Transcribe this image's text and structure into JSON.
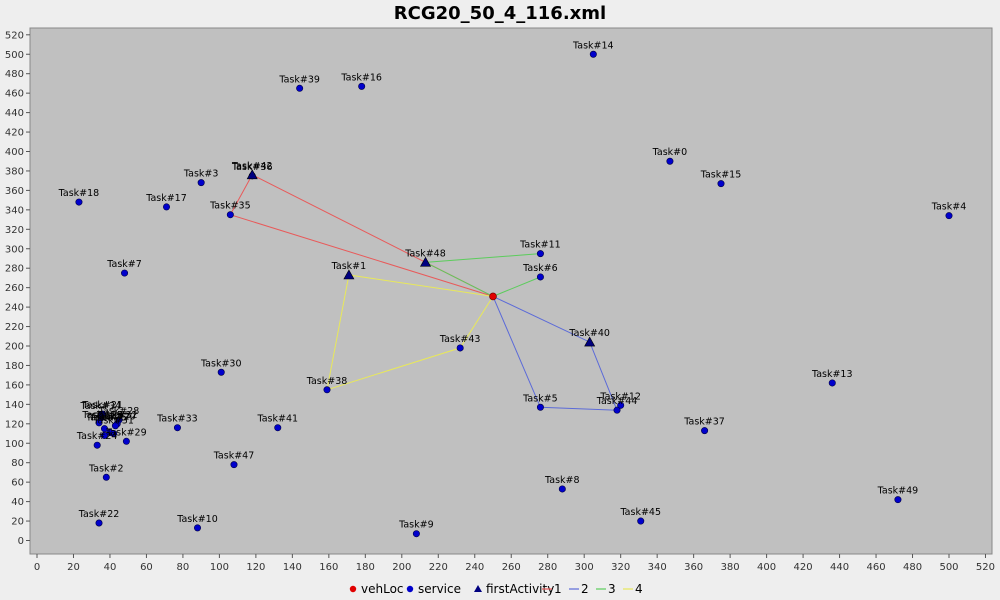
{
  "chart_data": {
    "type": "scatter",
    "title": "RCG20_50_4_116.xml",
    "xlim": [
      0,
      524
    ],
    "ylim": [
      -12,
      524
    ],
    "x_ticks": [
      0,
      20,
      40,
      60,
      80,
      100,
      120,
      140,
      160,
      180,
      200,
      220,
      240,
      260,
      280,
      300,
      320,
      340,
      360,
      380,
      400,
      420,
      440,
      460,
      480,
      500,
      520
    ],
    "y_ticks": [
      0,
      20,
      40,
      60,
      80,
      100,
      120,
      140,
      160,
      180,
      200,
      220,
      240,
      260,
      280,
      300,
      320,
      340,
      360,
      380,
      400,
      420,
      440,
      460,
      480,
      500,
      520
    ],
    "grid": false,
    "legend_placement": "bottom",
    "vehLoc": {
      "x": 250,
      "y": 251
    },
    "tasks": [
      {
        "label": "Task#0",
        "x": 347,
        "y": 390,
        "kind": "service"
      },
      {
        "label": "Task#1",
        "x": 171,
        "y": 273,
        "kind": "firstActivity"
      },
      {
        "label": "Task#2",
        "x": 38,
        "y": 65,
        "kind": "service"
      },
      {
        "label": "Task#3",
        "x": 90,
        "y": 368,
        "kind": "service"
      },
      {
        "label": "Task#4",
        "x": 500,
        "y": 334,
        "kind": "service"
      },
      {
        "label": "Task#5",
        "x": 276,
        "y": 137,
        "kind": "service"
      },
      {
        "label": "Task#6",
        "x": 276,
        "y": 271,
        "kind": "service"
      },
      {
        "label": "Task#7",
        "x": 48,
        "y": 275,
        "kind": "service"
      },
      {
        "label": "Task#8",
        "x": 288,
        "y": 53,
        "kind": "service"
      },
      {
        "label": "Task#9",
        "x": 208,
        "y": 7,
        "kind": "service"
      },
      {
        "label": "Task#10",
        "x": 88,
        "y": 13,
        "kind": "service"
      },
      {
        "label": "Task#11",
        "x": 276,
        "y": 295,
        "kind": "service"
      },
      {
        "label": "Task#12",
        "x": 320,
        "y": 139,
        "kind": "service"
      },
      {
        "label": "Task#13",
        "x": 436,
        "y": 162,
        "kind": "service"
      },
      {
        "label": "Task#14",
        "x": 305,
        "y": 500,
        "kind": "service"
      },
      {
        "label": "Task#15",
        "x": 375,
        "y": 367,
        "kind": "service"
      },
      {
        "label": "Task#16",
        "x": 178,
        "y": 467,
        "kind": "service"
      },
      {
        "label": "Task#17",
        "x": 71,
        "y": 343,
        "kind": "service"
      },
      {
        "label": "Task#18",
        "x": 23,
        "y": 348,
        "kind": "service"
      },
      {
        "label": "Task#20",
        "x": 43,
        "y": 118,
        "kind": "service"
      },
      {
        "label": "Task#22",
        "x": 34,
        "y": 18,
        "kind": "service"
      },
      {
        "label": "Task#24",
        "x": 33,
        "y": 98,
        "kind": "service"
      },
      {
        "label": "Task#28",
        "x": 45,
        "y": 124,
        "kind": "service"
      },
      {
        "label": "Task#29",
        "x": 49,
        "y": 102,
        "kind": "service"
      },
      {
        "label": "Task#30",
        "x": 101,
        "y": 173,
        "kind": "service"
      },
      {
        "label": "Task#33",
        "x": 77,
        "y": 116,
        "kind": "service"
      },
      {
        "label": "Task#34",
        "x": 35,
        "y": 129,
        "kind": "service"
      },
      {
        "label": "Task#35",
        "x": 106,
        "y": 335,
        "kind": "service"
      },
      {
        "label": "Task#36",
        "x": 118,
        "y": 375,
        "kind": "service"
      },
      {
        "label": "Task#37",
        "x": 366,
        "y": 113,
        "kind": "service"
      },
      {
        "label": "Task#38",
        "x": 159,
        "y": 155,
        "kind": "service"
      },
      {
        "label": "Task#39",
        "x": 144,
        "y": 465,
        "kind": "service"
      },
      {
        "label": "Task#40",
        "x": 303,
        "y": 204,
        "kind": "firstActivity"
      },
      {
        "label": "Task#41",
        "x": 132,
        "y": 116,
        "kind": "service"
      },
      {
        "label": "Task#42",
        "x": 118,
        "y": 376,
        "kind": "firstActivity"
      },
      {
        "label": "Task#43",
        "x": 232,
        "y": 198,
        "kind": "service"
      },
      {
        "label": "Task#44",
        "x": 318,
        "y": 134,
        "kind": "service"
      },
      {
        "label": "Task#45",
        "x": 331,
        "y": 20,
        "kind": "service"
      },
      {
        "label": "Task#47",
        "x": 108,
        "y": 78,
        "kind": "service"
      },
      {
        "label": "Task#48",
        "x": 213,
        "y": 286,
        "kind": "firstActivity"
      },
      {
        "label": "Task#49",
        "x": 472,
        "y": 42,
        "kind": "service"
      }
    ],
    "cluster_labels": [
      "Task#21",
      "Task#25",
      "Task#26",
      "Task#27",
      "Task#31",
      "Task#32"
    ],
    "cluster_points": [
      {
        "x": 35,
        "y": 126
      },
      {
        "x": 34,
        "y": 121
      },
      {
        "x": 37,
        "y": 115
      },
      {
        "x": 40,
        "y": 111
      },
      {
        "x": 37,
        "y": 108
      },
      {
        "x": 42,
        "y": 110
      },
      {
        "x": 36,
        "y": 130
      },
      {
        "x": 44,
        "y": 120
      }
    ],
    "series": [
      {
        "name": "1",
        "color": "#e85a5a",
        "route": [
          [
            250,
            251
          ],
          [
            118,
            376
          ],
          [
            106,
            335
          ],
          [
            250,
            251
          ]
        ]
      },
      {
        "name": "2",
        "color": "#5b6ad8",
        "route": [
          [
            250,
            251
          ],
          [
            303,
            204
          ],
          [
            318,
            134
          ],
          [
            276,
            137
          ],
          [
            250,
            251
          ]
        ]
      },
      {
        "name": "3",
        "color": "#5ccc5c",
        "route": [
          [
            250,
            251
          ],
          [
            213,
            286
          ],
          [
            276,
            295
          ]
        ],
        "extra": [
          [
            250,
            251
          ],
          [
            276,
            271
          ]
        ]
      },
      {
        "name": "4",
        "color": "#e8e85a",
        "route": [
          [
            250,
            251
          ],
          [
            171,
            273
          ],
          [
            159,
            155
          ],
          [
            232,
            198
          ],
          [
            250,
            251
          ]
        ]
      }
    ],
    "legend": [
      {
        "label": "vehLoc",
        "kind": "dot",
        "color": "#e00000"
      },
      {
        "label": "service",
        "kind": "dot",
        "color": "#0000cc"
      },
      {
        "label": "firstActivity",
        "kind": "triangle",
        "color": "#000080"
      },
      {
        "label": "1",
        "kind": "line",
        "color": "#e85a5a"
      },
      {
        "label": "2",
        "kind": "line",
        "color": "#5b6ad8"
      },
      {
        "label": "3",
        "kind": "line",
        "color": "#5ccc5c"
      },
      {
        "label": "4",
        "kind": "line",
        "color": "#e8e85a"
      }
    ],
    "colors": {
      "plot_bg": "#c0c0c0",
      "service": "#0000cc",
      "firstActivity": "#000080",
      "vehLoc": "#e00000"
    }
  }
}
